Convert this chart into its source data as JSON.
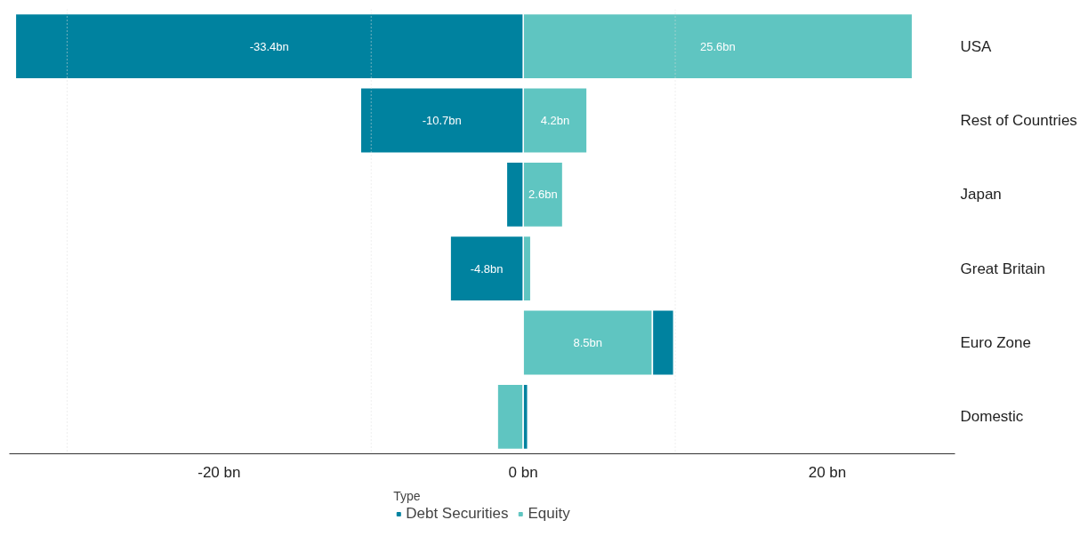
{
  "chart_data": {
    "type": "bar",
    "orientation": "horizontal",
    "stacked": true,
    "categories": [
      "USA",
      "Rest of Countries",
      "Japan",
      "Great Britain",
      "Euro Zone",
      "Domestic"
    ],
    "series": [
      {
        "name": "Equity",
        "color": "#5fc5c1",
        "values": [
          25.6,
          4.2,
          2.6,
          0.5,
          8.5,
          -1.7
        ],
        "value_labels": [
          "25.6bn",
          "4.2bn",
          "2.6bn",
          null,
          "8.5bn",
          null
        ]
      },
      {
        "name": "Debt Securities",
        "color": "#00829f",
        "values": [
          -33.4,
          -10.7,
          -1.1,
          -4.8,
          1.4,
          0.3
        ],
        "value_labels": [
          "-33.4bn",
          "-10.7bn",
          null,
          "-4.8bn",
          null,
          null
        ]
      }
    ],
    "xlim": [
      -33.8,
      28.4
    ],
    "xticks": [
      {
        "value": -30,
        "label": null
      },
      {
        "value": -20,
        "label": "-20 bn"
      },
      {
        "value": -10,
        "label": null
      },
      {
        "value": 0,
        "label": "0 bn"
      },
      {
        "value": 10,
        "label": null
      },
      {
        "value": 20,
        "label": "20 bn"
      }
    ],
    "grid": "x",
    "legend": "bottom",
    "legend_title": "Type"
  }
}
